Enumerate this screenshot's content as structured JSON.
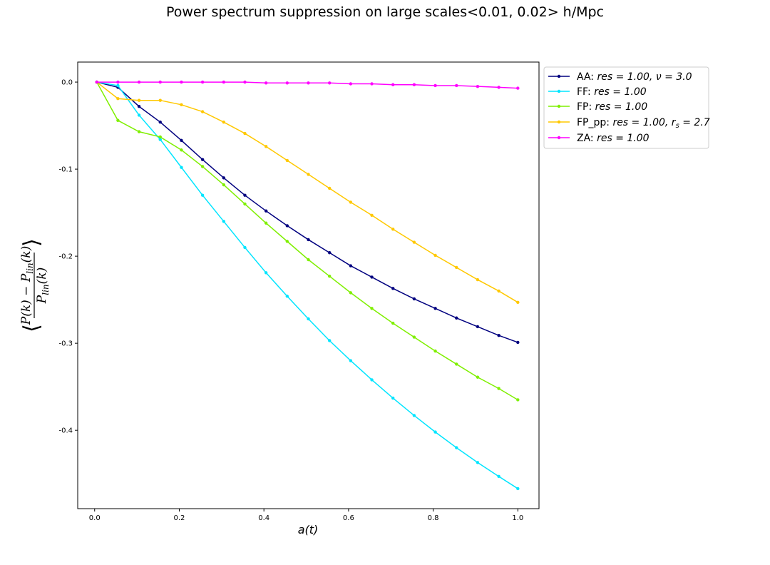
{
  "chart_data": {
    "type": "line",
    "title": "Power spectrum suppression on large scales<0.01, 0.02> h/Mpc",
    "xlabel": "a(t)",
    "ylabel_parts": {
      "open": "⟨",
      "num_a": "P(k) − P",
      "num_sub": "lin",
      "num_b": "(k)",
      "den_a": "P",
      "den_sub": "lin",
      "den_b": "(k)",
      "close": "⟩"
    },
    "xlim": [
      -0.04,
      1.05
    ],
    "ylim": [
      -0.49,
      0.023
    ],
    "x_ticks": [
      "0.0",
      "0.2",
      "0.4",
      "0.6",
      "0.8",
      "1.0"
    ],
    "y_ticks": [
      "0.0",
      "-0.1",
      "-0.2",
      "-0.3",
      "-0.4"
    ],
    "grid": false,
    "legend_position": "outside-top-right",
    "x": [
      0.005,
      0.055,
      0.105,
      0.155,
      0.205,
      0.255,
      0.305,
      0.355,
      0.405,
      0.455,
      0.505,
      0.555,
      0.605,
      0.655,
      0.705,
      0.755,
      0.805,
      0.855,
      0.905,
      0.955,
      1.0
    ],
    "series": [
      {
        "legend_prefix": "AA: ",
        "legend_math": "res = 1.00, ν = 3.0",
        "color": "#00007f",
        "values": [
          0.0,
          -0.006,
          -0.028,
          -0.046,
          -0.067,
          -0.089,
          -0.11,
          -0.13,
          -0.148,
          -0.165,
          -0.181,
          -0.196,
          -0.211,
          -0.224,
          -0.237,
          -0.249,
          -0.26,
          -0.271,
          -0.281,
          -0.291,
          -0.299
        ]
      },
      {
        "legend_prefix": "FF: ",
        "legend_math": "res = 1.00",
        "color": "#00e5ff",
        "values": [
          0.0,
          -0.004,
          -0.038,
          -0.066,
          -0.098,
          -0.13,
          -0.16,
          -0.19,
          -0.219,
          -0.246,
          -0.272,
          -0.297,
          -0.32,
          -0.342,
          -0.363,
          -0.383,
          -0.402,
          -0.42,
          -0.437,
          -0.453,
          -0.467
        ]
      },
      {
        "legend_prefix": "FP: ",
        "legend_math": "res = 1.00",
        "color": "#7fef00",
        "values": [
          0.0,
          -0.044,
          -0.057,
          -0.063,
          -0.078,
          -0.097,
          -0.118,
          -0.14,
          -0.162,
          -0.183,
          -0.204,
          -0.223,
          -0.242,
          -0.26,
          -0.277,
          -0.293,
          -0.309,
          -0.324,
          -0.339,
          -0.352,
          -0.365
        ]
      },
      {
        "legend_prefix": "FP_pp: ",
        "legend_math": "res = 1.00, r",
        "legend_sub": "s",
        "legend_tail": " = 2.7",
        "color": "#ffc800",
        "values": [
          0.0,
          -0.019,
          -0.021,
          -0.021,
          -0.026,
          -0.034,
          -0.046,
          -0.059,
          -0.074,
          -0.09,
          -0.106,
          -0.122,
          -0.138,
          -0.153,
          -0.169,
          -0.184,
          -0.199,
          -0.213,
          -0.227,
          -0.24,
          -0.253
        ]
      },
      {
        "legend_prefix": "ZA: ",
        "legend_math": "res = 1.00",
        "color": "#ff00ff",
        "values": [
          0.0,
          0.0,
          0.0,
          0.0,
          0.0,
          0.0,
          0.0,
          0.0,
          -0.001,
          -0.001,
          -0.001,
          -0.001,
          -0.002,
          -0.002,
          -0.003,
          -0.003,
          -0.004,
          -0.004,
          -0.005,
          -0.006,
          -0.007
        ]
      }
    ]
  }
}
